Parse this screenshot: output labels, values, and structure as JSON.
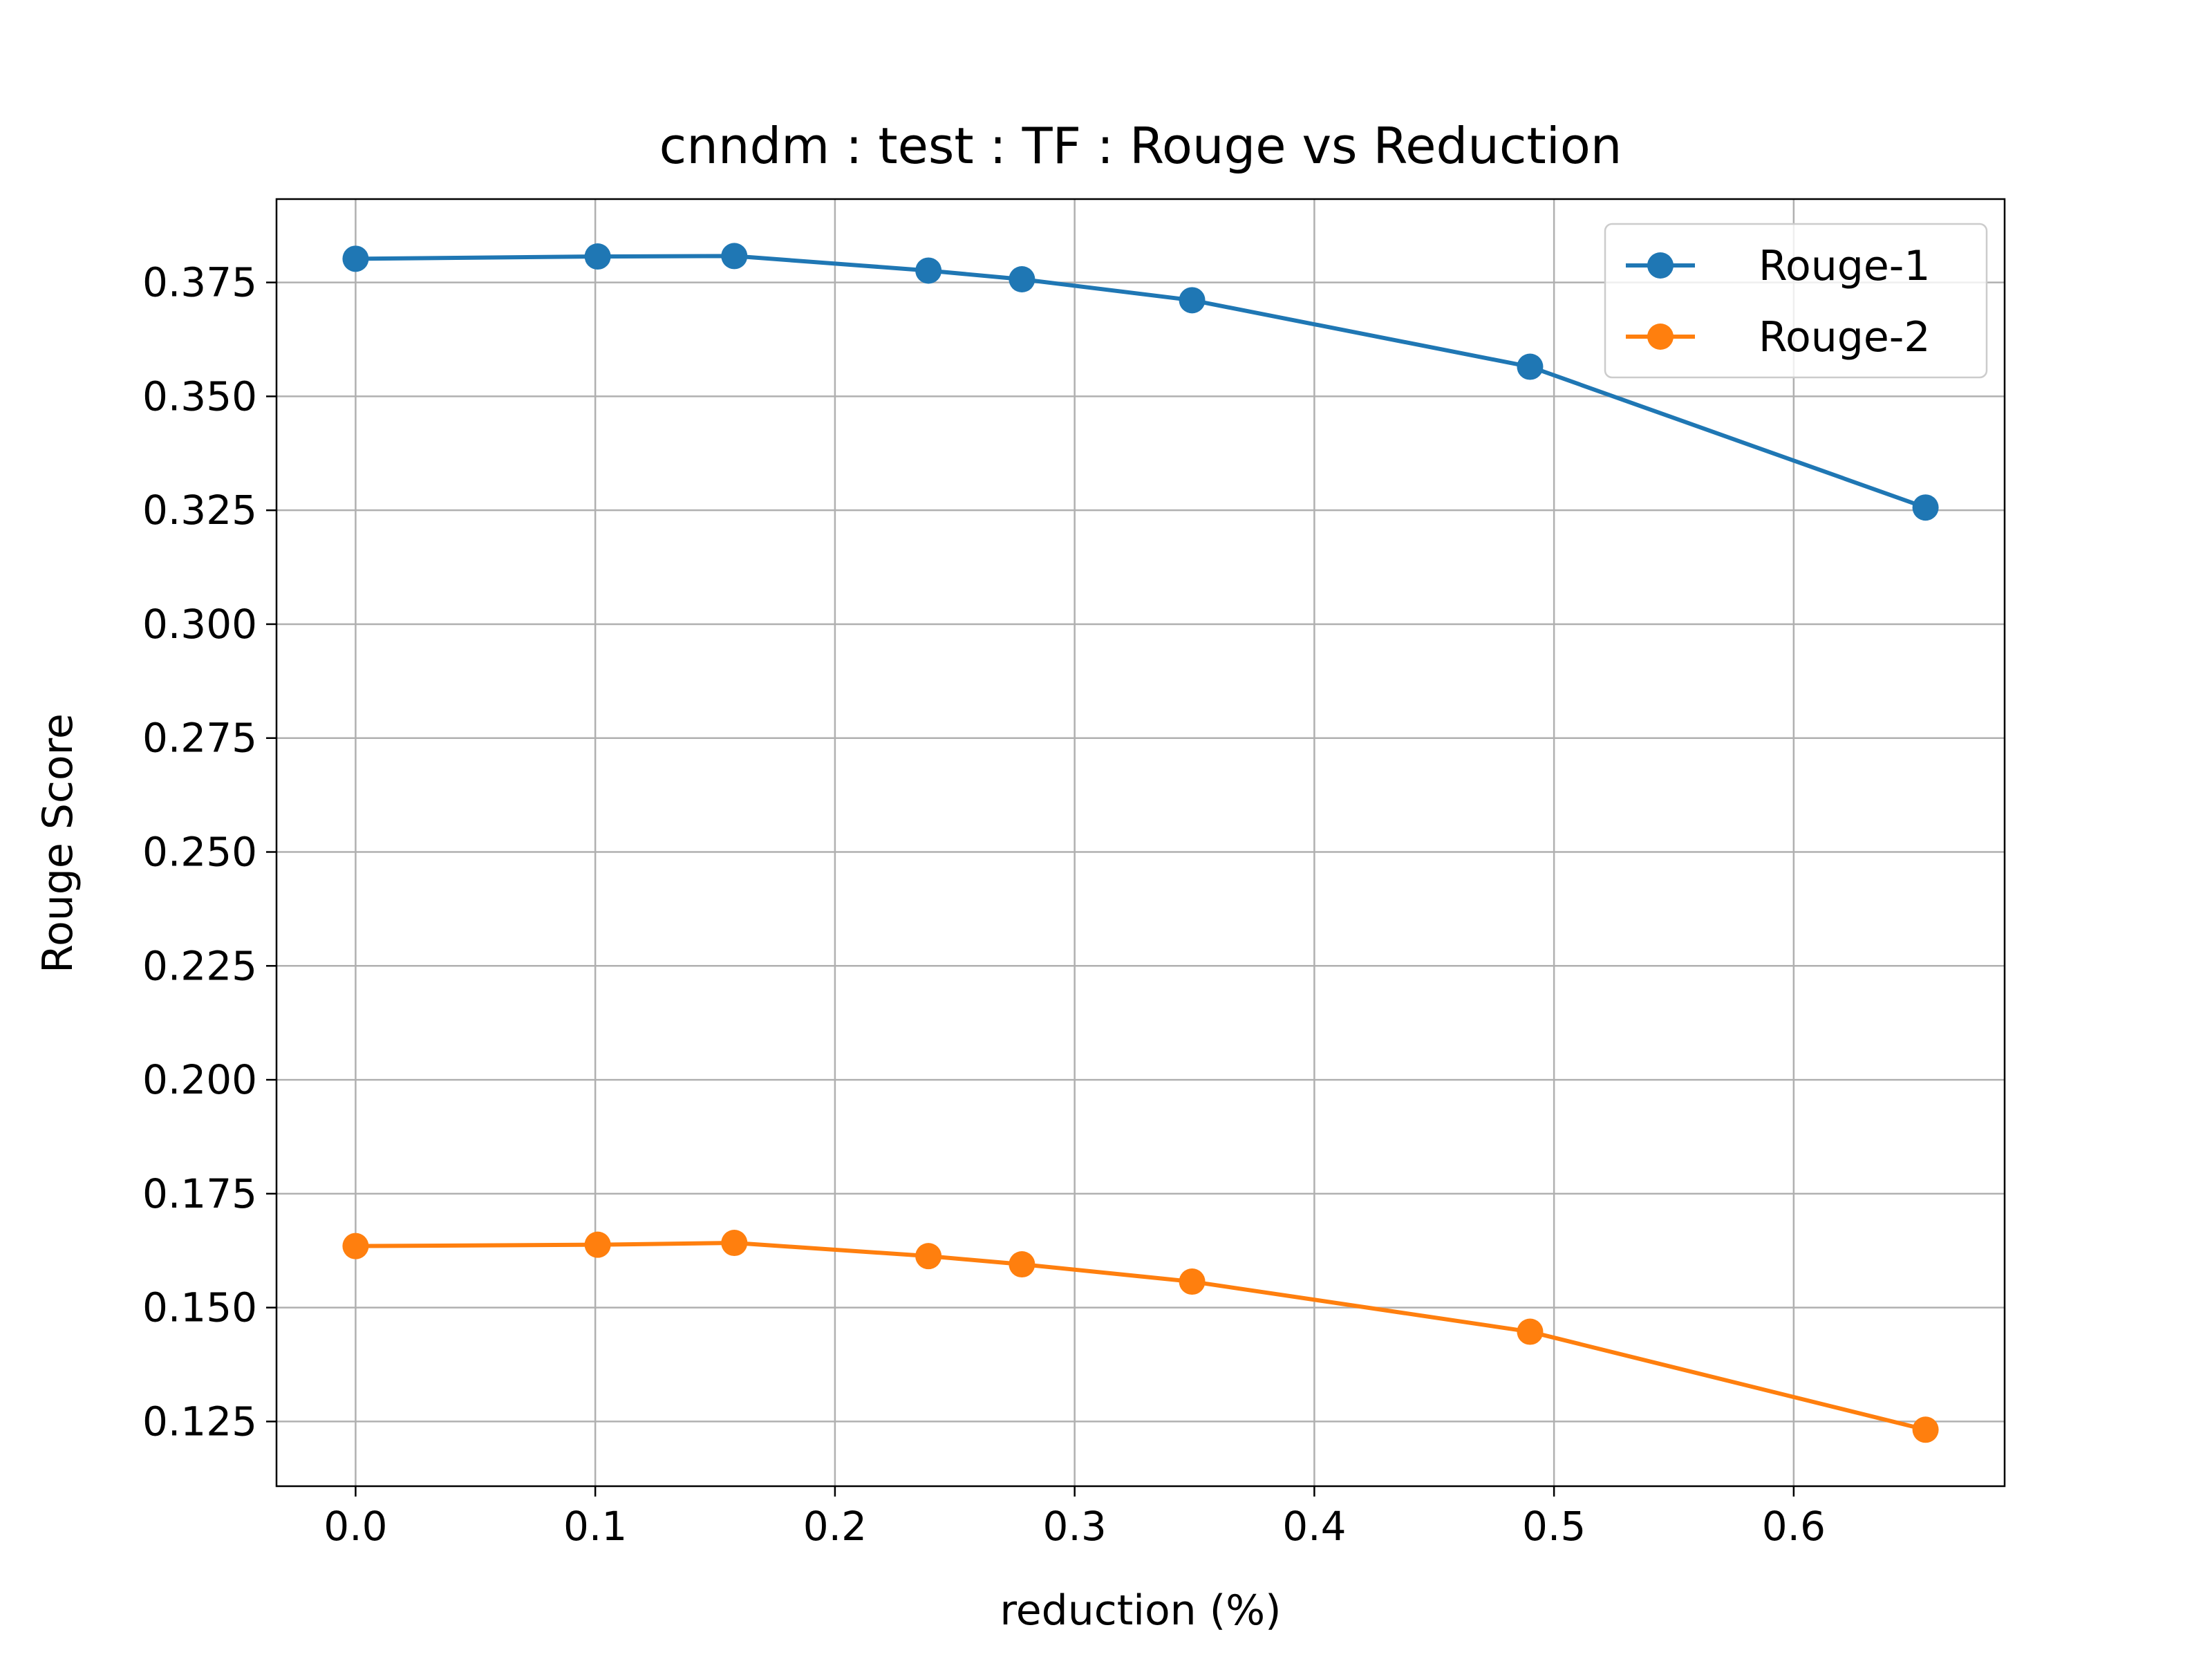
{
  "chart_data": {
    "type": "line",
    "title": "cnndm : test : TF : Rouge vs Reduction",
    "xlabel": "reduction (%)",
    "ylabel": "Rouge Score",
    "xlim": [
      -0.033,
      0.688
    ],
    "ylim": [
      0.1108,
      0.3933
    ],
    "grid": true,
    "legend_position": "top-right",
    "x": [
      0.0,
      0.101,
      0.158,
      0.239,
      0.278,
      0.349,
      0.49,
      0.655
    ],
    "x_ticks": [
      0.0,
      0.1,
      0.2,
      0.3,
      0.4,
      0.5,
      0.6
    ],
    "x_tick_labels": [
      "0.0",
      "0.1",
      "0.2",
      "0.3",
      "0.4",
      "0.5",
      "0.6"
    ],
    "y_ticks": [
      0.125,
      0.15,
      0.175,
      0.2,
      0.225,
      0.25,
      0.275,
      0.3,
      0.325,
      0.35,
      0.375
    ],
    "y_tick_labels": [
      "0.125",
      "0.150",
      "0.175",
      "0.200",
      "0.225",
      "0.250",
      "0.275",
      "0.300",
      "0.325",
      "0.350",
      "0.375"
    ],
    "series": [
      {
        "name": "Rouge-1",
        "color": "#1f77b4",
        "values": [
          0.3802,
          0.3807,
          0.3808,
          0.3776,
          0.3757,
          0.3711,
          0.3565,
          0.3256
        ]
      },
      {
        "name": "Rouge-2",
        "color": "#ff7f0e",
        "values": [
          0.1635,
          0.1638,
          0.1642,
          0.1613,
          0.1595,
          0.1557,
          0.1447,
          0.1232
        ]
      }
    ]
  }
}
